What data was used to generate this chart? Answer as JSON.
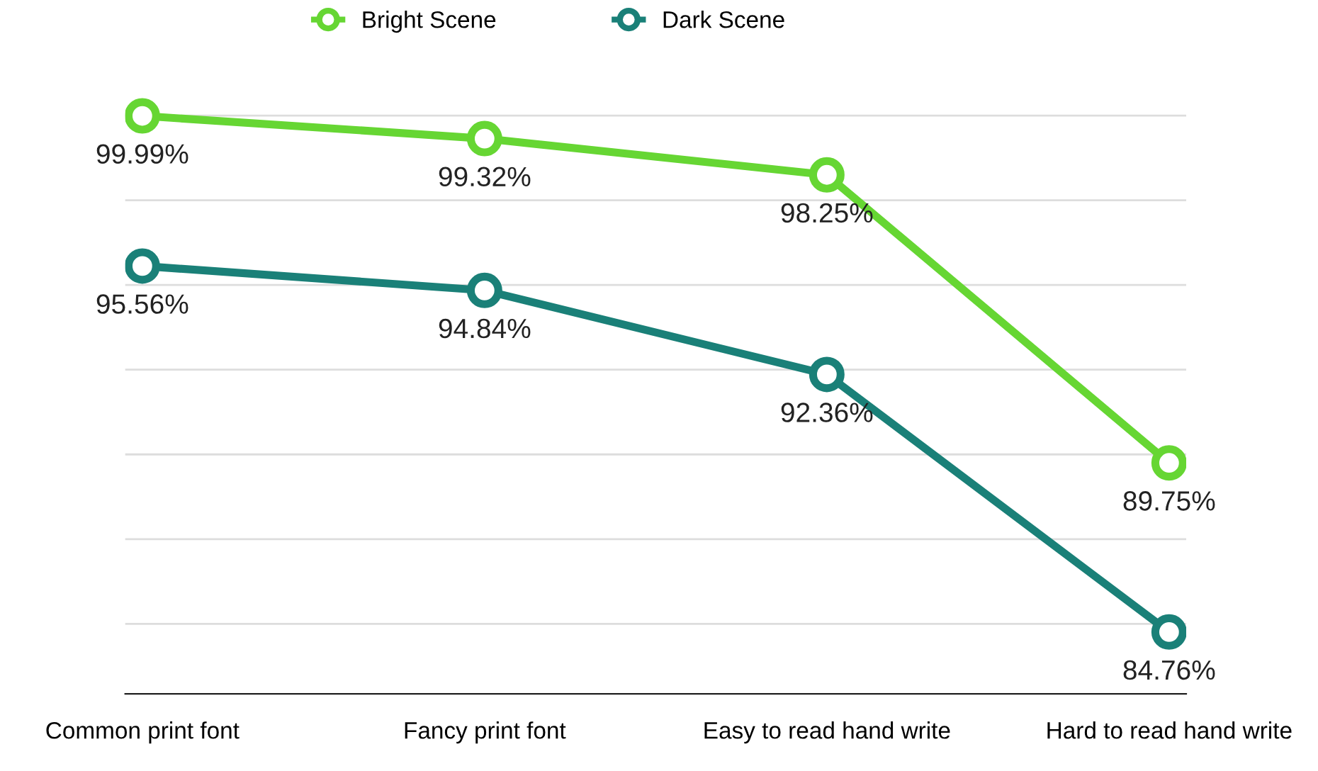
{
  "chart_data": {
    "type": "line",
    "categories": [
      "Common print font",
      "Fancy print font",
      "Easy to read hand write",
      "Hard to read hand write"
    ],
    "series": [
      {
        "name": "Bright Scene",
        "color": "#66d633",
        "values": [
          99.99,
          99.32,
          98.25,
          89.75
        ],
        "value_labels": [
          "99.99%",
          "99.32%",
          "98.25%",
          "89.75%"
        ]
      },
      {
        "name": "Dark Scene",
        "color": "#1a8078",
        "values": [
          95.56,
          94.84,
          92.36,
          84.76
        ],
        "value_labels": [
          "95.56%",
          "94.84%",
          "92.36%",
          "84.76%"
        ]
      }
    ],
    "tick_labels": "x",
    "grid": "y",
    "legend": "top",
    "marker": "circle",
    "line_style": "solid"
  }
}
